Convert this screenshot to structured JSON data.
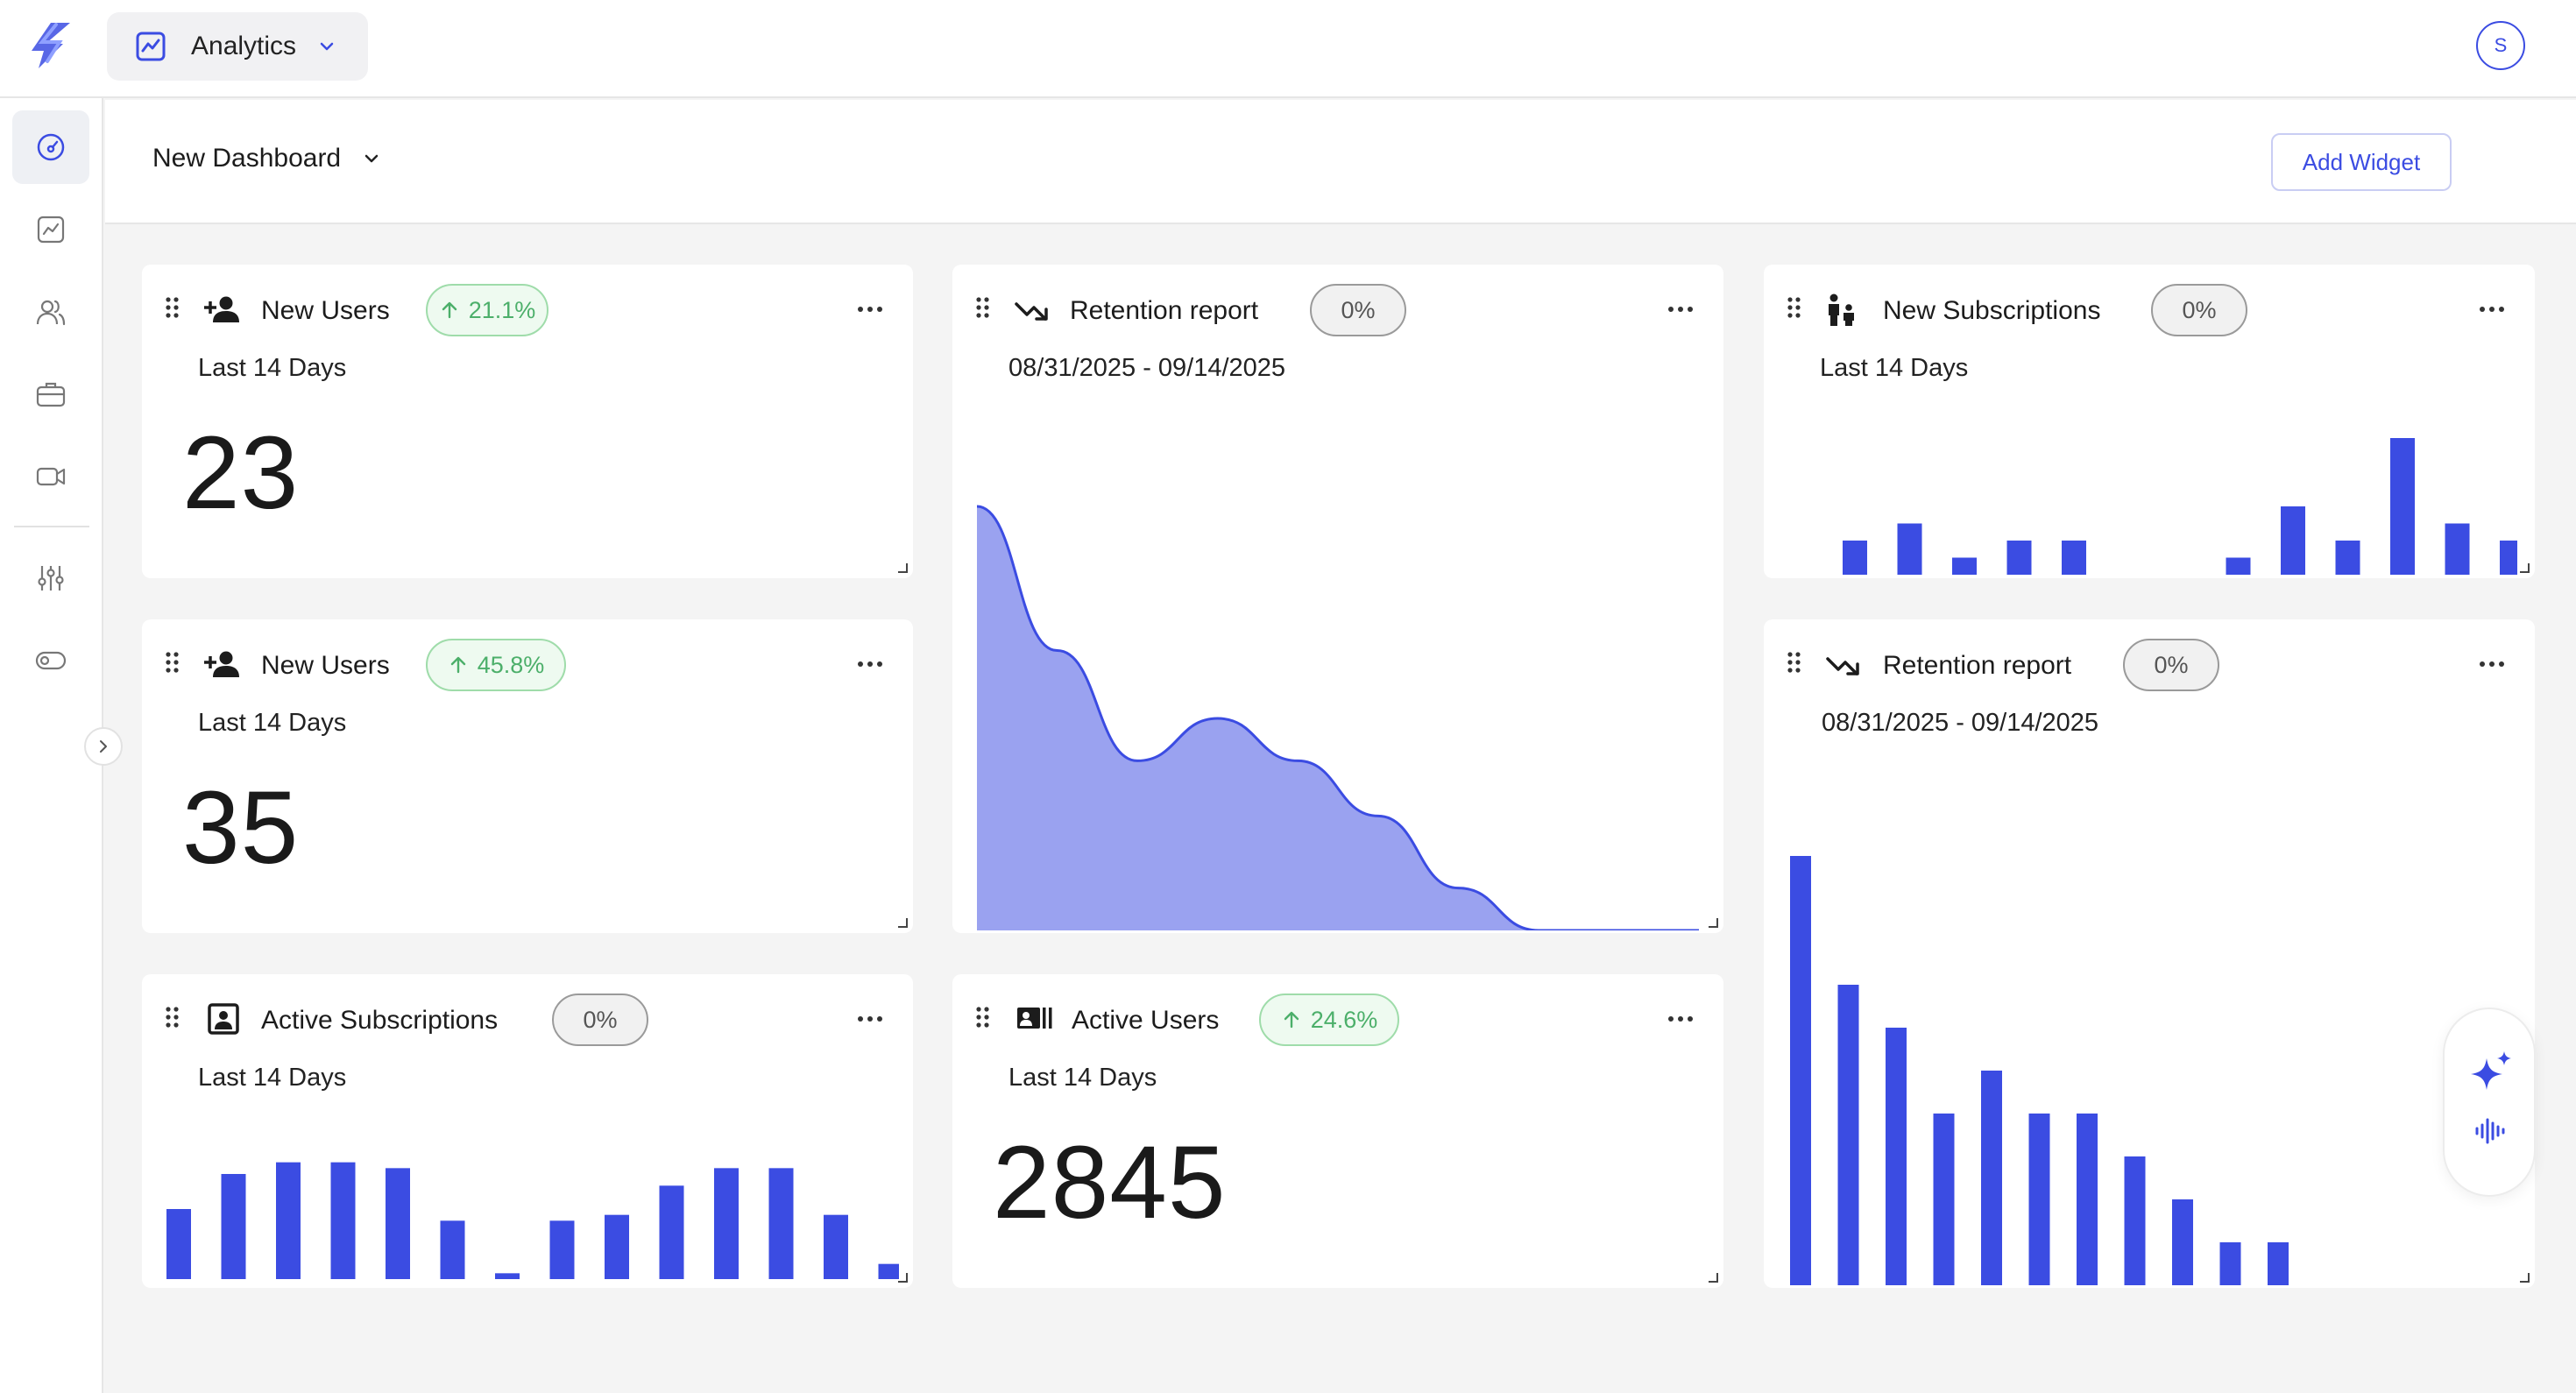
{
  "app": {
    "name": "Analytics",
    "avatar_initial": "S",
    "accent": "#3b4ce2"
  },
  "dashboard": {
    "title": "New Dashboard",
    "add_widget_label": "Add Widget"
  },
  "sidebar": {
    "items": [
      {
        "name": "dashboard-icon",
        "active": true
      },
      {
        "name": "analytics-icon"
      },
      {
        "name": "users-icon"
      },
      {
        "name": "briefcase-icon"
      },
      {
        "name": "video-icon"
      },
      {
        "name": "sliders-icon"
      },
      {
        "name": "toggle-icon"
      }
    ]
  },
  "widgets": {
    "new_users_1": {
      "title": "New Users",
      "change": "21.1%",
      "subtitle": "Last 14 Days",
      "value": "23"
    },
    "new_users_2": {
      "title": "New Users",
      "change": "45.8%",
      "subtitle": "Last 14 Days",
      "value": "35"
    },
    "active_subscriptions": {
      "title": "Active Subscriptions",
      "change": "0%",
      "subtitle": "Last 14 Days"
    },
    "retention_1": {
      "title": "Retention report",
      "change": "0%",
      "subtitle": "08/31/2025 - 09/14/2025"
    },
    "active_users": {
      "title": "Active Users",
      "change": "24.6%",
      "subtitle": "Last 14 Days",
      "value": "2845"
    },
    "new_subscriptions": {
      "title": "New Subscriptions",
      "change": "0%",
      "subtitle": "Last 14 Days"
    },
    "retention_2": {
      "title": "Retention report",
      "change": "0%",
      "subtitle": "08/31/2025 - 09/14/2025"
    }
  },
  "chart_data": [
    {
      "id": "active_subscriptions",
      "type": "bar",
      "color": "#3b4ce2",
      "values": [
        6,
        9,
        10,
        10,
        9.5,
        5,
        0.5,
        5,
        5.5,
        8,
        9.5,
        9.5,
        5.5,
        1.3
      ],
      "ylim": [
        0,
        12
      ]
    },
    {
      "id": "retention_1",
      "type": "area",
      "color": "#3b4ce2",
      "fill": "#9aa2f0",
      "values": [
        100,
        66,
        40,
        50,
        40,
        27,
        10,
        0,
        0,
        0
      ],
      "ylim": [
        0,
        100
      ]
    },
    {
      "id": "new_subscriptions",
      "type": "bar",
      "color": "#3b4ce2",
      "values": [
        2,
        3,
        1,
        2,
        2,
        0,
        0,
        1,
        4,
        2,
        8,
        3,
        2
      ],
      "ylim": [
        0,
        8
      ]
    },
    {
      "id": "retention_2",
      "type": "bar",
      "color": "#3b4ce2",
      "values": [
        100,
        70,
        60,
        40,
        50,
        40,
        40,
        30,
        20,
        10,
        10
      ],
      "ylim": [
        0,
        100
      ]
    }
  ]
}
